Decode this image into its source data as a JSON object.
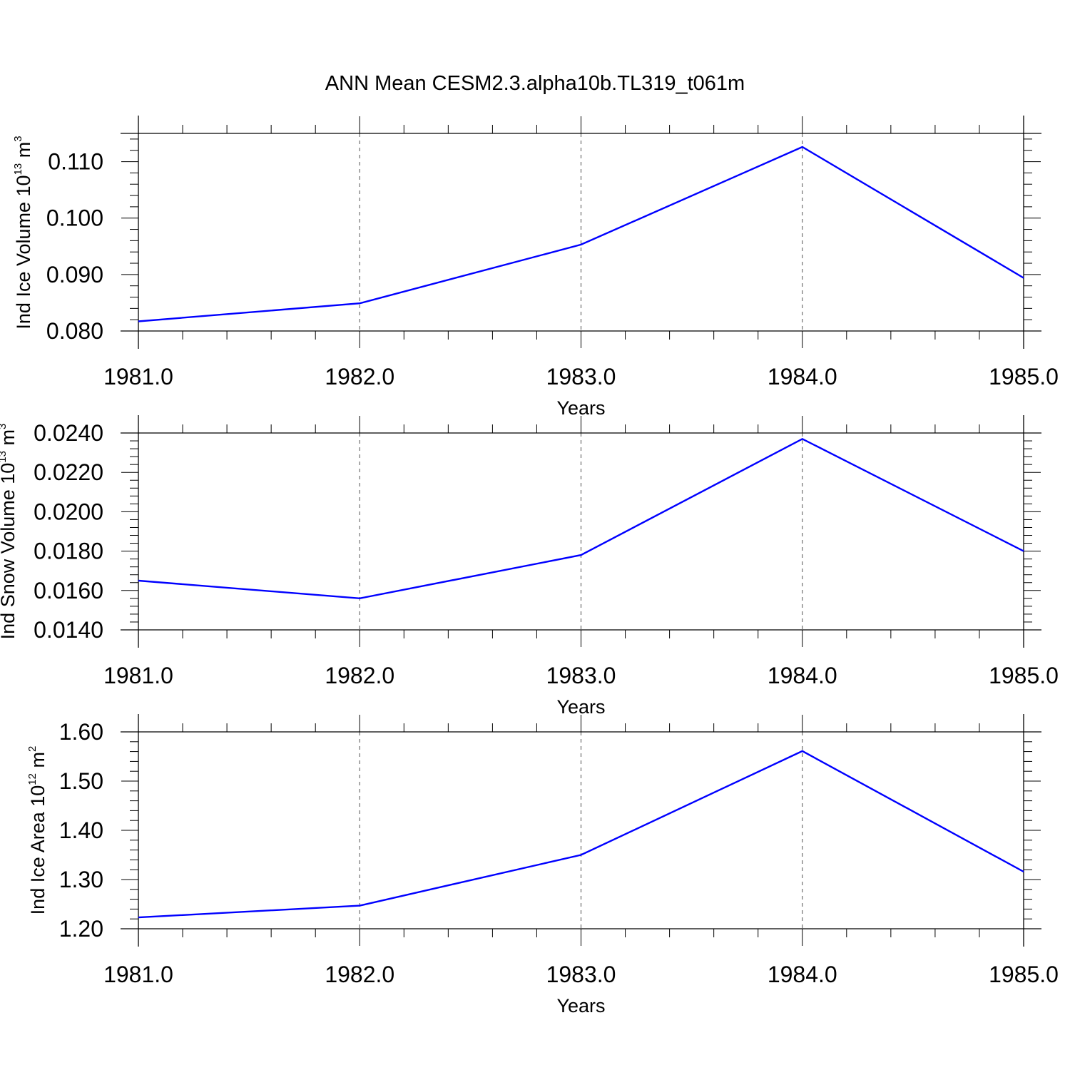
{
  "figure": {
    "title": "ANN Mean CESM2.3.alpha10b.TL319_t061m",
    "line_color": "#0000ff",
    "axis_color": "#000000",
    "grid_color": "#6e6e6e"
  },
  "chart_data": [
    {
      "type": "line",
      "xlabel": "Years",
      "ylabel": {
        "text": "Ind Ice Volume 10",
        "exp": "13",
        "unit": " m",
        "unit_exp": "3"
      },
      "x": [
        1981,
        1982,
        1983,
        1984,
        1985
      ],
      "x_ticks": [
        "1981.0",
        "1982.0",
        "1983.0",
        "1984.0",
        "1985.0"
      ],
      "xlim": [
        1981,
        1985
      ],
      "y_ticks": [
        "0.080",
        "0.090",
        "0.100",
        "0.110"
      ],
      "ylim": [
        0.08,
        0.115
      ],
      "grid": "vertical dashed at major x ticks",
      "series": [
        {
          "values": [
            0.0817,
            0.0849,
            0.0953,
            0.1126,
            0.0894
          ]
        }
      ]
    },
    {
      "type": "line",
      "xlabel": "Years",
      "ylabel": {
        "text": "Ind Snow Volume 10",
        "exp": "13",
        "unit": " m",
        "unit_exp": "3"
      },
      "x": [
        1981,
        1982,
        1983,
        1984,
        1985
      ],
      "x_ticks": [
        "1981.0",
        "1982.0",
        "1983.0",
        "1984.0",
        "1985.0"
      ],
      "xlim": [
        1981,
        1985
      ],
      "y_ticks": [
        "0.0140",
        "0.0160",
        "0.0180",
        "0.0200",
        "0.0220",
        "0.0240"
      ],
      "ylim": [
        0.014,
        0.024
      ],
      "grid": "vertical dashed at major x ticks",
      "series": [
        {
          "values": [
            0.0165,
            0.0156,
            0.0178,
            0.0237,
            0.018
          ]
        }
      ]
    },
    {
      "type": "line",
      "xlabel": "Years",
      "ylabel": {
        "text": "Ind Ice Area 10",
        "exp": "12",
        "unit": " m",
        "unit_exp": "2"
      },
      "x": [
        1981,
        1982,
        1983,
        1984,
        1985
      ],
      "x_ticks": [
        "1981.0",
        "1982.0",
        "1983.0",
        "1984.0",
        "1985.0"
      ],
      "xlim": [
        1981,
        1985
      ],
      "y_ticks": [
        "1.20",
        "1.30",
        "1.40",
        "1.50",
        "1.60"
      ],
      "ylim": [
        1.2,
        1.6
      ],
      "grid": "vertical dashed at major x ticks",
      "series": [
        {
          "values": [
            1.223,
            1.247,
            1.35,
            1.561,
            1.316
          ]
        }
      ]
    }
  ]
}
